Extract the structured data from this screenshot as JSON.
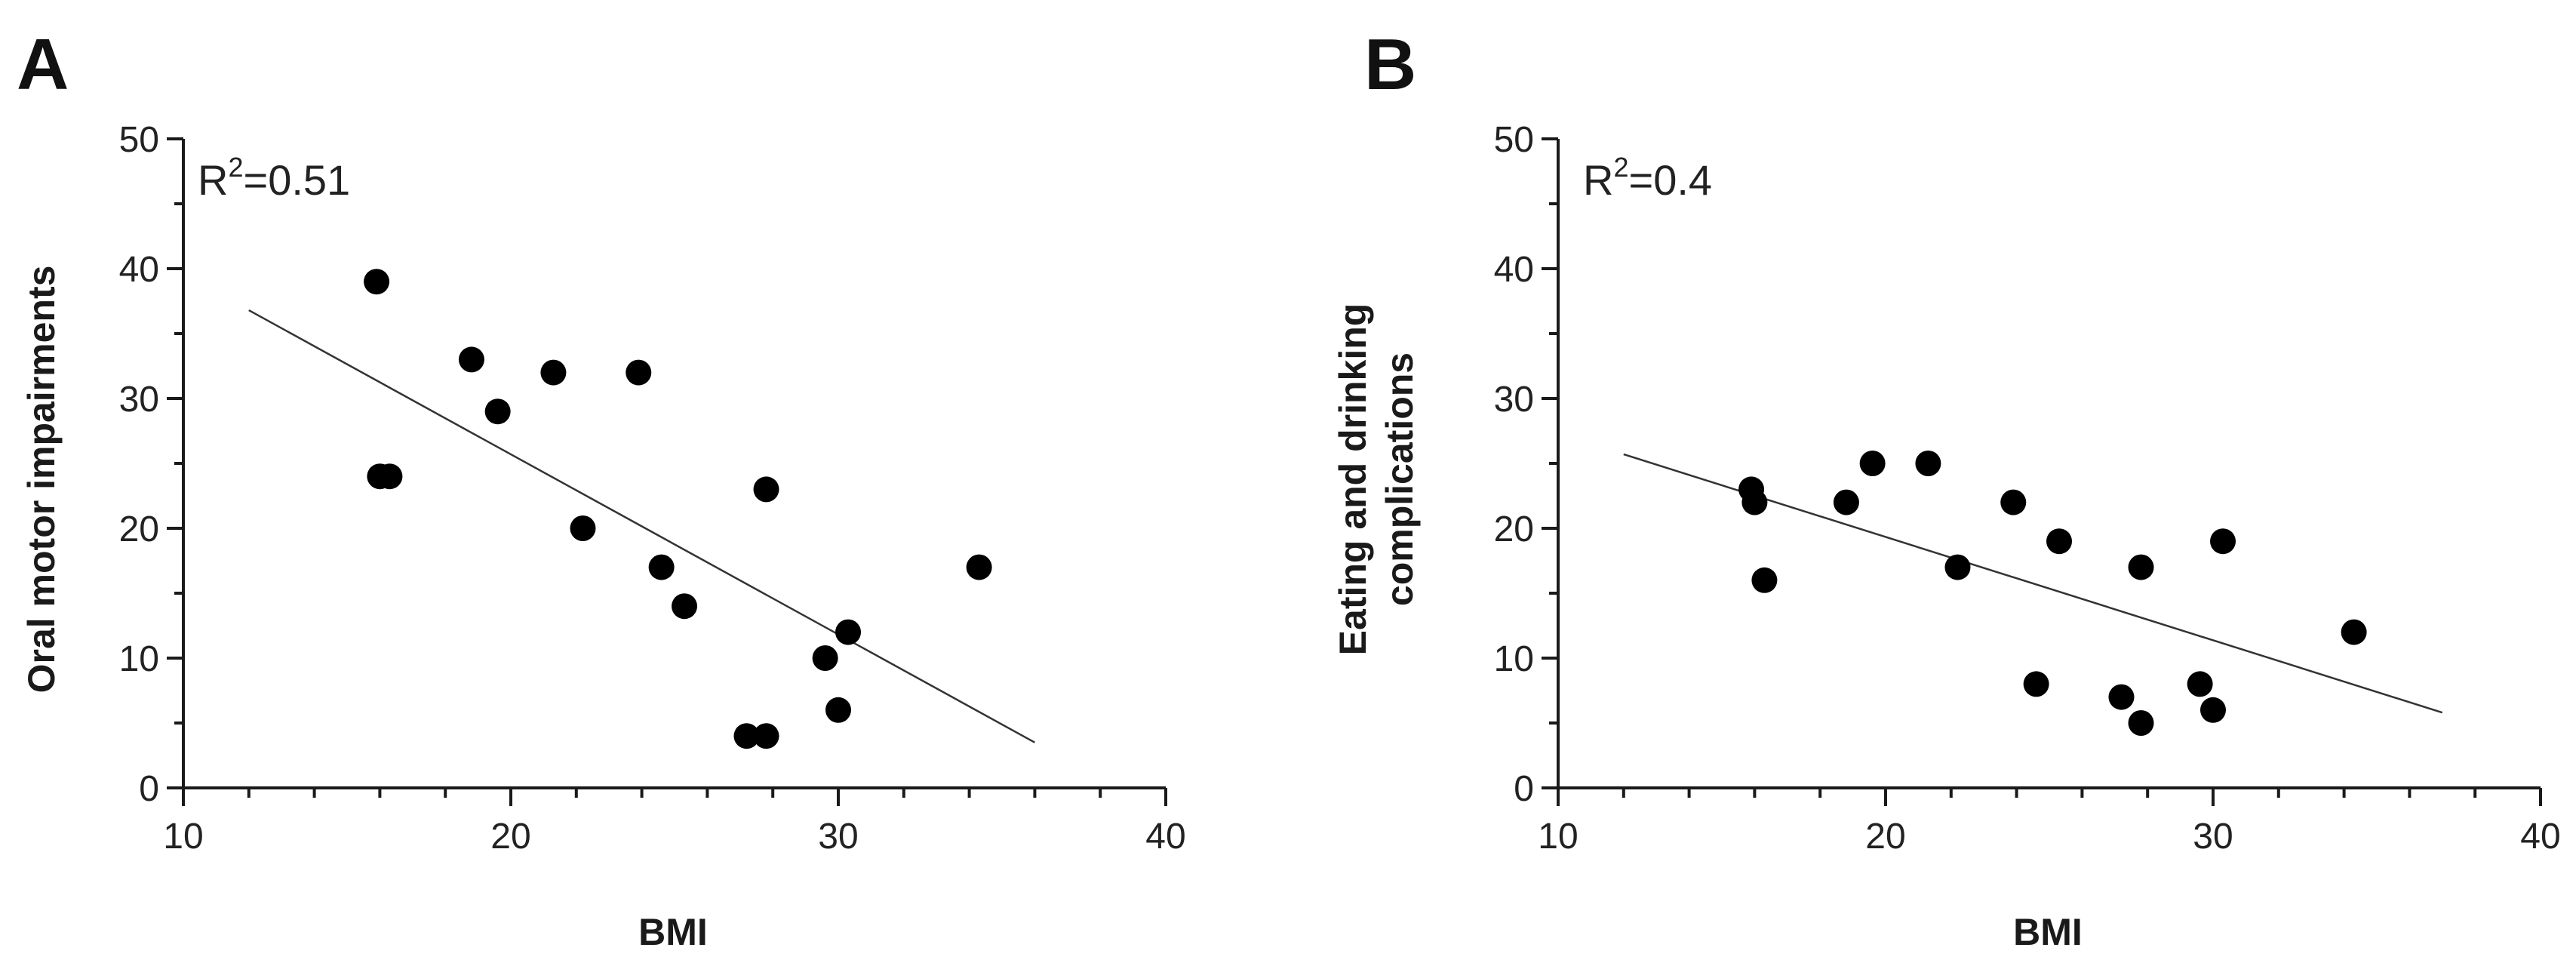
{
  "chart_data": [
    {
      "type": "scatter",
      "panel_label": "A",
      "title": "",
      "xlabel": "BMI",
      "ylabel": "Oral motor impairments",
      "xlim": [
        10,
        40
      ],
      "ylim": [
        0,
        50
      ],
      "xticks": [
        10,
        20,
        30,
        40
      ],
      "yticks": [
        0,
        10,
        20,
        30,
        40,
        50
      ],
      "annotation": {
        "base": "R",
        "sup": "2",
        "rest": "=0.51"
      },
      "points": [
        {
          "x": 15.9,
          "y": 39
        },
        {
          "x": 16.0,
          "y": 24
        },
        {
          "x": 16.3,
          "y": 24
        },
        {
          "x": 18.8,
          "y": 33
        },
        {
          "x": 19.6,
          "y": 29
        },
        {
          "x": 21.3,
          "y": 32
        },
        {
          "x": 22.2,
          "y": 20
        },
        {
          "x": 23.9,
          "y": 32
        },
        {
          "x": 24.6,
          "y": 17
        },
        {
          "x": 25.3,
          "y": 14
        },
        {
          "x": 27.2,
          "y": 4
        },
        {
          "x": 27.8,
          "y": 23
        },
        {
          "x": 27.8,
          "y": 4
        },
        {
          "x": 29.6,
          "y": 10
        },
        {
          "x": 30.0,
          "y": 6
        },
        {
          "x": 30.3,
          "y": 12
        },
        {
          "x": 34.3,
          "y": 17
        }
      ],
      "fit_line": {
        "x": [
          12,
          36
        ],
        "y": [
          36.8,
          3.5
        ]
      }
    },
    {
      "type": "scatter",
      "panel_label": "B",
      "title": "",
      "xlabel": "BMI",
      "ylabel": [
        "Eating and drinking",
        "complications"
      ],
      "xlim": [
        10,
        40
      ],
      "ylim": [
        0,
        50
      ],
      "xticks": [
        10,
        20,
        30,
        40
      ],
      "yticks": [
        0,
        10,
        20,
        30,
        40,
        50
      ],
      "annotation": {
        "base": "R",
        "sup": "2",
        "rest": "=0.4"
      },
      "points": [
        {
          "x": 15.9,
          "y": 23
        },
        {
          "x": 16.0,
          "y": 22
        },
        {
          "x": 16.3,
          "y": 16
        },
        {
          "x": 18.8,
          "y": 22
        },
        {
          "x": 19.6,
          "y": 25
        },
        {
          "x": 21.3,
          "y": 25
        },
        {
          "x": 22.2,
          "y": 17
        },
        {
          "x": 23.9,
          "y": 22
        },
        {
          "x": 24.6,
          "y": 8
        },
        {
          "x": 25.3,
          "y": 19
        },
        {
          "x": 27.2,
          "y": 7
        },
        {
          "x": 27.8,
          "y": 17
        },
        {
          "x": 27.8,
          "y": 5
        },
        {
          "x": 29.6,
          "y": 8
        },
        {
          "x": 30.0,
          "y": 6
        },
        {
          "x": 30.3,
          "y": 19
        },
        {
          "x": 34.3,
          "y": 12
        }
      ],
      "fit_line": {
        "x": [
          12,
          37
        ],
        "y": [
          25.7,
          5.8
        ]
      }
    }
  ]
}
